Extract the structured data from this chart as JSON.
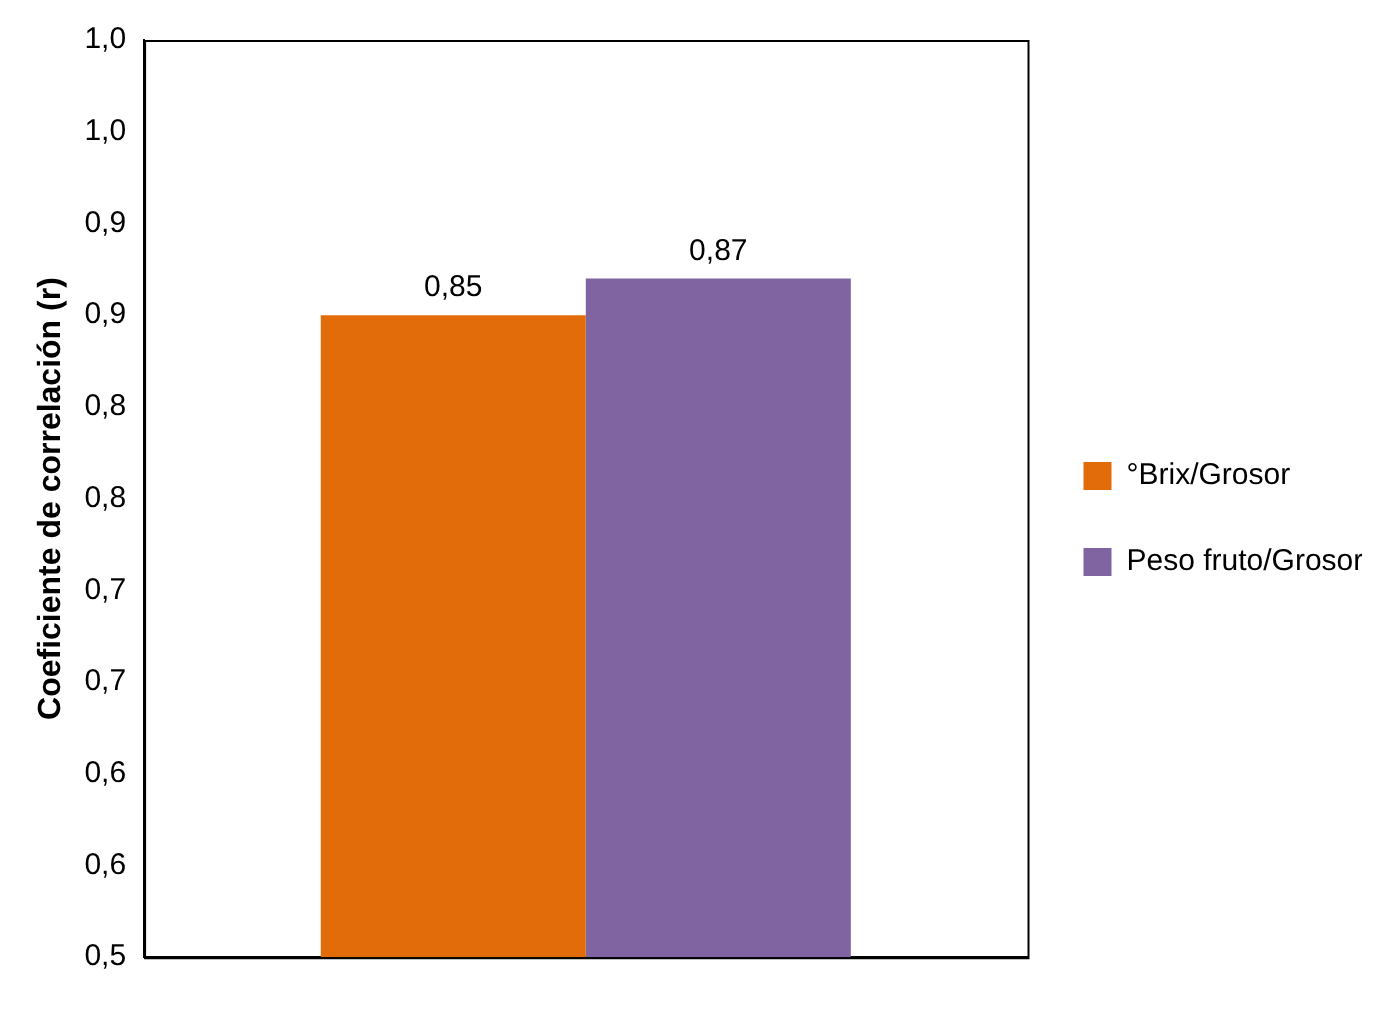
{
  "chart_data": {
    "type": "bar",
    "ylabel": "Coeficiente de correlación (r)",
    "categories": [
      null
    ],
    "series": [
      {
        "name": "°Brix/Grosor",
        "color": "#e36c0a",
        "values": [
          0.85
        ],
        "value_labels": [
          "0,85"
        ]
      },
      {
        "name": "Peso fruto/Grosor",
        "color": "#8064a2",
        "values": [
          0.87
        ],
        "value_labels": [
          "0,87"
        ]
      }
    ],
    "ylim": [
      0.5,
      1.0
    ],
    "yticks": [
      {
        "value": 0.5,
        "label": "0,5"
      },
      {
        "value": 0.55,
        "label": "0,6"
      },
      {
        "value": 0.6,
        "label": "0,6"
      },
      {
        "value": 0.65,
        "label": "0,7"
      },
      {
        "value": 0.7,
        "label": "0,7"
      },
      {
        "value": 0.75,
        "label": "0,8"
      },
      {
        "value": 0.8,
        "label": "0,8"
      },
      {
        "value": 0.85,
        "label": "0,9"
      },
      {
        "value": 0.9,
        "label": "0,9"
      },
      {
        "value": 0.95,
        "label": "1,0"
      },
      {
        "value": 1.0,
        "label": "1,0"
      }
    ],
    "grid": false,
    "legend": "right"
  }
}
